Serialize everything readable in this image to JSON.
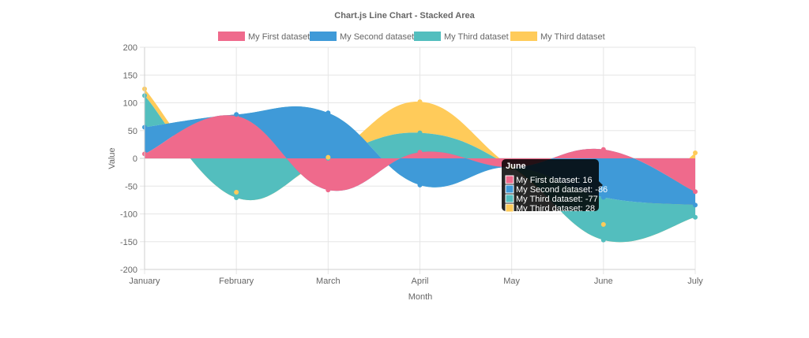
{
  "chart_data": {
    "type": "area",
    "title": "Chart.js Line Chart - Stacked Area",
    "xlabel": "Month",
    "ylabel": "Value",
    "categories": [
      "January",
      "February",
      "March",
      "April",
      "May",
      "June",
      "July"
    ],
    "ylim": [
      -200,
      200
    ],
    "yticks": [
      -200,
      -150,
      -100,
      -50,
      0,
      50,
      100,
      150,
      200
    ],
    "grid": true,
    "legend_position": "top",
    "series": [
      {
        "name": "My First dataset",
        "color": "#ef6a8c",
        "values": [
          8,
          76,
          -57,
          11,
          -16,
          16,
          -60
        ]
      },
      {
        "name": "My Second dataset",
        "color": "#3f9ad8",
        "values": [
          48,
          3,
          139,
          -59,
          0,
          -86,
          -24
        ]
      },
      {
        "name": "My Third dataset",
        "color": "#53bebe",
        "values": [
          57,
          -150,
          -82,
          94,
          0,
          -77,
          -22
        ]
      },
      {
        "name": "My Third dataset",
        "color": "#ffcb5a",
        "values": [
          12,
          10,
          2,
          56,
          0,
          28,
          116
        ]
      }
    ],
    "tooltip": {
      "title": "June",
      "lines": [
        "My First dataset: 16",
        "My Second dataset: -86",
        "My Third dataset: -77",
        "My Third dataset: 28"
      ]
    }
  }
}
